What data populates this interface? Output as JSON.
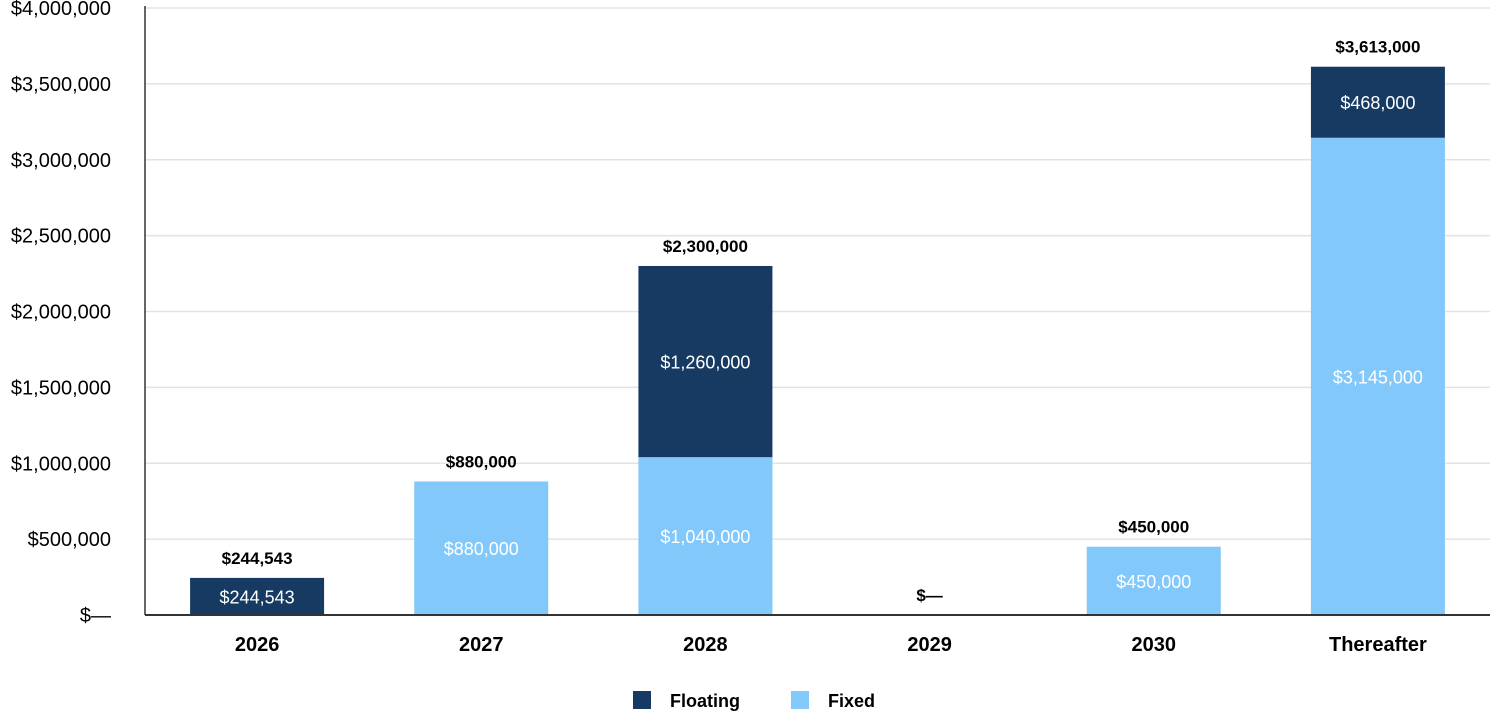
{
  "chart_data": {
    "type": "bar",
    "stacked": true,
    "categories": [
      "2026",
      "2027",
      "2028",
      "2029",
      "2030",
      "Thereafter"
    ],
    "series": [
      {
        "name": "Fixed",
        "color": "#82c8fa",
        "values": [
          0,
          880000,
          1040000,
          0,
          450000,
          3145000
        ],
        "labels": [
          "",
          "$880,000",
          "$1,040,000",
          "",
          "$450,000",
          "$3,145,000"
        ]
      },
      {
        "name": "Floating",
        "color": "#173a63",
        "values": [
          244543,
          0,
          1260000,
          0,
          0,
          468000
        ],
        "labels": [
          "$244,543",
          "",
          "$1,260,000",
          "",
          "",
          "$468,000"
        ]
      }
    ],
    "totals": [
      244543,
      880000,
      2300000,
      0,
      450000,
      3613000
    ],
    "total_labels": [
      "$244,543",
      "$880,000",
      "$2,300,000",
      "$—",
      "$450,000",
      "$3,613,000"
    ],
    "ylim": [
      0,
      4000000
    ],
    "y_ticks": [
      0,
      500000,
      1000000,
      1500000,
      2000000,
      2500000,
      3000000,
      3500000,
      4000000
    ],
    "y_tick_labels": [
      "$—",
      "$500,000",
      "$1,000,000",
      "$1,500,000",
      "$2,000,000",
      "$2,500,000",
      "$3,000,000",
      "$3,500,000",
      "$4,000,000"
    ],
    "grid": true,
    "legend_position": "bottom-center",
    "legend": [
      {
        "name": "Floating",
        "color": "#173a63"
      },
      {
        "name": "Fixed",
        "color": "#82c8fa"
      }
    ]
  }
}
